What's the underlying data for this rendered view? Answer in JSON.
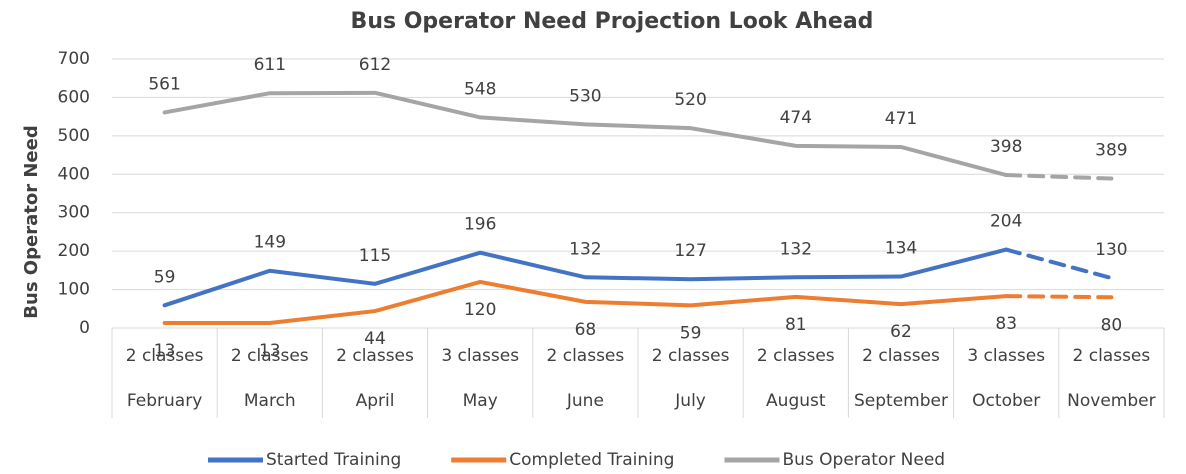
{
  "chart_data": {
    "type": "line",
    "title": "Bus Operator Need Projection Look Ahead",
    "y_label": "Bus Operator Need",
    "categories": [
      "February",
      "March",
      "April",
      "May",
      "June",
      "July",
      "August",
      "September",
      "October",
      "November"
    ],
    "class_labels": [
      "2 classes",
      "2 classes",
      "2 classes",
      "3 classes",
      "2 classes",
      "2 classes",
      "2 classes",
      "2 classes",
      "3 classes",
      "2 classes"
    ],
    "series": [
      {
        "name": "Started Training",
        "color": "#4472c4",
        "label_position": "above",
        "values": [
          59,
          149,
          115,
          196,
          132,
          127,
          132,
          134,
          204,
          130
        ]
      },
      {
        "name": "Completed Training",
        "color": "#ed7d31",
        "label_position": "below",
        "values": [
          13,
          13,
          44,
          120,
          68,
          59,
          81,
          62,
          83,
          80
        ]
      },
      {
        "name": "Bus Operator Need",
        "color": "#a5a5a5",
        "label_position": "above",
        "values": [
          561,
          611,
          612,
          548,
          530,
          520,
          474,
          471,
          398,
          389
        ]
      }
    ],
    "dashed_last_segment": true,
    "ylim": [
      0,
      700
    ],
    "yticks": [
      0,
      100,
      200,
      300,
      400,
      500,
      600,
      700
    ],
    "grid": true,
    "legend": "bottom"
  }
}
